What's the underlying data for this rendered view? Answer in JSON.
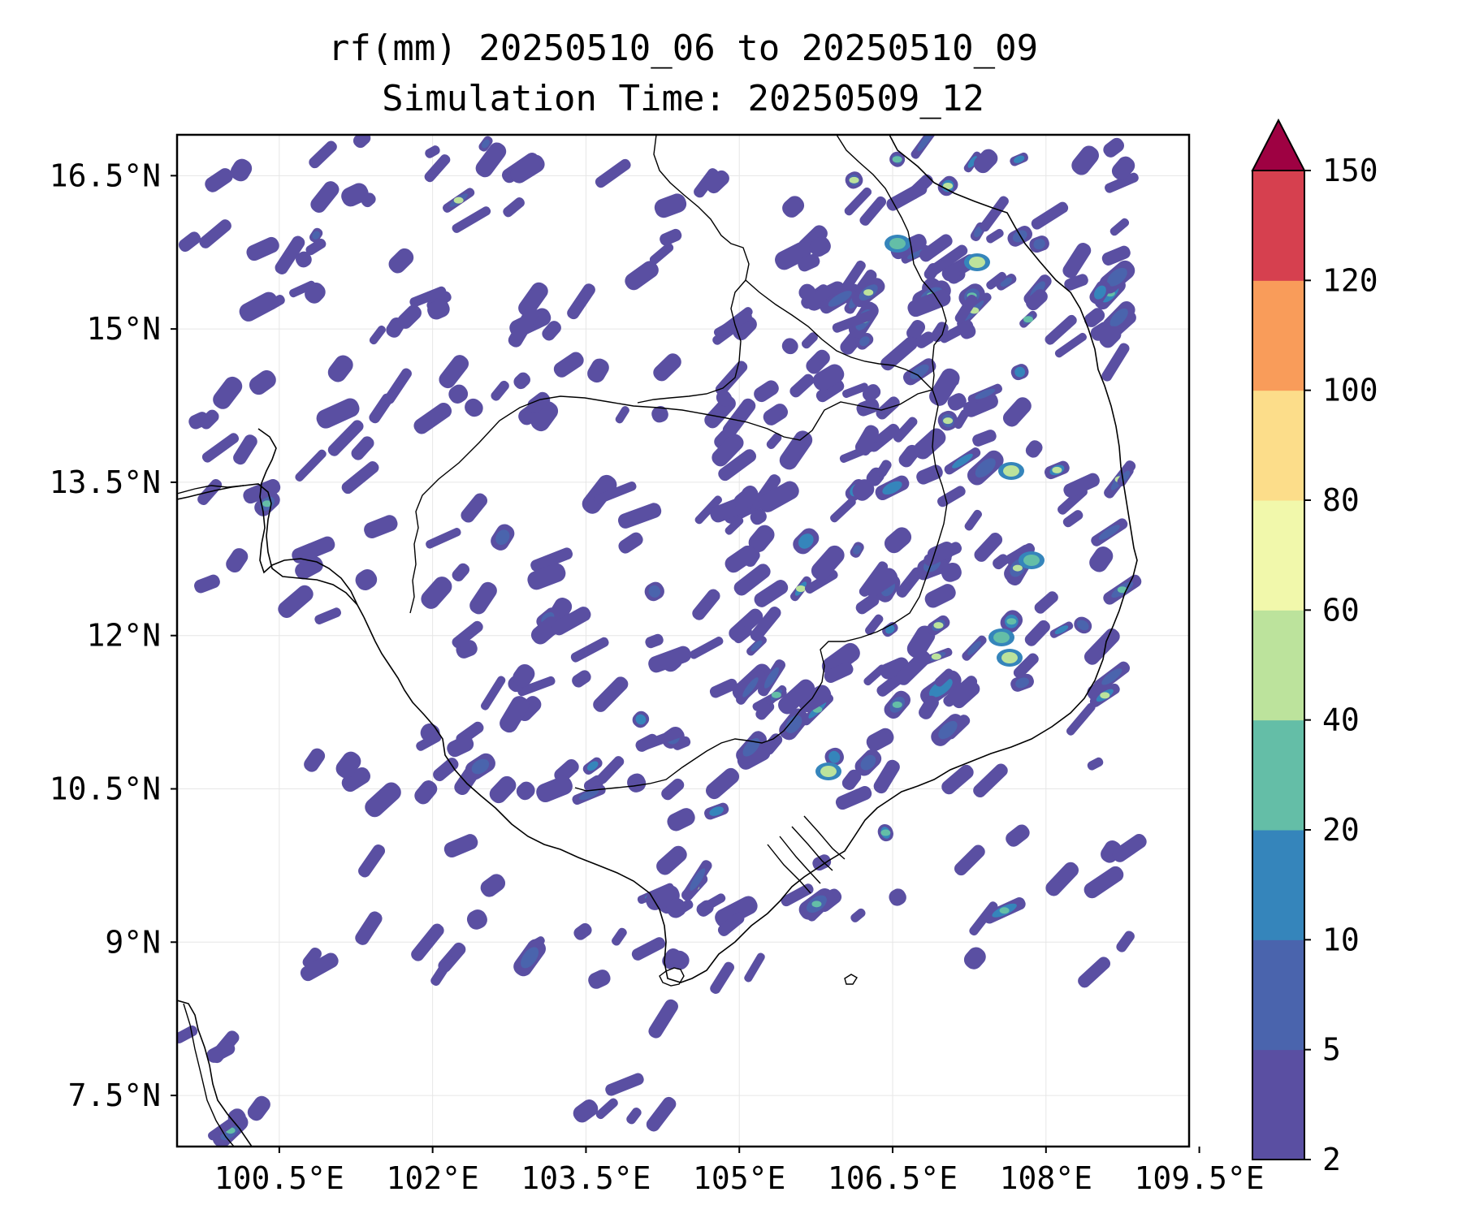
{
  "title": {
    "line1": "rf(mm) 20250510_06 to 20250510_09",
    "line2": "Simulation Time: 20250509_12"
  },
  "map": {
    "x_ticks": [
      "100.5°E",
      "102°E",
      "103.5°E",
      "105°E",
      "106.5°E",
      "108°E",
      "109.5°E"
    ],
    "y_ticks": [
      "16.5°N",
      "15°N",
      "13.5°N",
      "12°N",
      "10.5°N",
      "9°N",
      "7.5°N"
    ],
    "lon_values": [
      100.5,
      102,
      103.5,
      105,
      106.5,
      108,
      109.5
    ],
    "lat_values": [
      16.5,
      15,
      13.5,
      12,
      10.5,
      9,
      7.5
    ],
    "lon_range": [
      99.5,
      109.4
    ],
    "lat_range": [
      7.0,
      16.9
    ]
  },
  "colorbar": {
    "levels": [
      "2",
      "5",
      "10",
      "20",
      "40",
      "60",
      "80",
      "100",
      "120",
      "150"
    ],
    "colors": [
      "#5a4fa2",
      "#4a64ad",
      "#3585bb",
      "#64bea7",
      "#bce39c",
      "#f1f8ab",
      "#fcdd8a",
      "#f99c5a",
      "#d6404f",
      "#9e0142"
    ],
    "extend": "max"
  }
}
